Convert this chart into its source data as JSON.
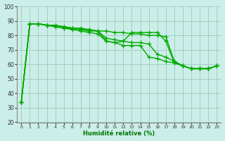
{
  "x": [
    0,
    1,
    2,
    3,
    4,
    5,
    6,
    7,
    8,
    9,
    10,
    11,
    12,
    13,
    14,
    15,
    16,
    17,
    18,
    19,
    20,
    21,
    22,
    23
  ],
  "line1": [
    34,
    88,
    88,
    87,
    87,
    86,
    85,
    85,
    84,
    83,
    83,
    82,
    82,
    81,
    81,
    80,
    80,
    79,
    62,
    59,
    57,
    57,
    57,
    59
  ],
  "line2": [
    34,
    88,
    88,
    87,
    87,
    86,
    85,
    84,
    84,
    83,
    78,
    77,
    76,
    75,
    75,
    74,
    67,
    65,
    62,
    59,
    57,
    57,
    57,
    59
  ],
  "line3": [
    34,
    88,
    88,
    87,
    86,
    85,
    85,
    84,
    83,
    83,
    76,
    75,
    73,
    73,
    73,
    65,
    64,
    62,
    61,
    59,
    57,
    57,
    57,
    59
  ],
  "line4": [
    34,
    88,
    88,
    87,
    86,
    85,
    84,
    83,
    82,
    81,
    76,
    75,
    76,
    82,
    82,
    82,
    82,
    76,
    61,
    59,
    57,
    57,
    57,
    59
  ],
  "bg_color": "#cceee8",
  "grid_color": "#99ccbb",
  "line_color": "#00aa00",
  "marker": "+",
  "markersize": 4,
  "linewidth": 1.0,
  "xlabel": "Humidité relative (%)",
  "xlabel_color": "#007700",
  "ylim": [
    20,
    100
  ],
  "xlim": [
    -0.5,
    23.5
  ],
  "yticks": [
    20,
    30,
    40,
    50,
    60,
    70,
    80,
    90,
    100
  ],
  "xticks": [
    0,
    1,
    2,
    3,
    4,
    5,
    6,
    7,
    8,
    9,
    10,
    11,
    12,
    13,
    14,
    15,
    16,
    17,
    18,
    19,
    20,
    21,
    22,
    23
  ]
}
